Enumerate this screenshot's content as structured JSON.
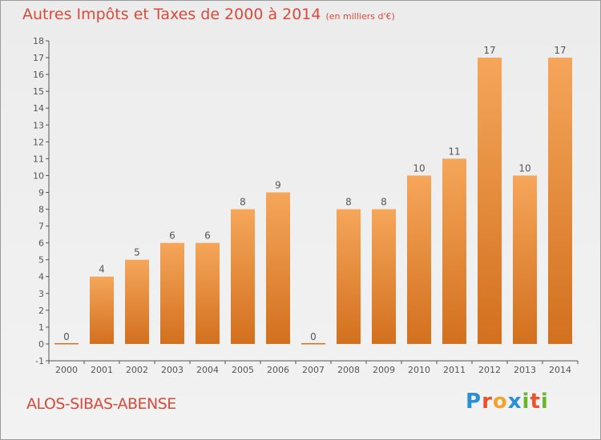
{
  "header": {
    "title": "Autres Impôts et Taxes de 2000 à 2014",
    "subtitle": "(en milliers d'€)"
  },
  "footer": {
    "location": "ALOS-SIBAS-ABENSE",
    "logo": {
      "text": "Proxiti",
      "letters": [
        "P",
        "r",
        "o",
        "x",
        "i",
        "t",
        "i"
      ],
      "colors": [
        "#2a8fd6",
        "#e8532a",
        "#f2a42a",
        "#2a8fd6",
        "#6ab530",
        "#e8532a",
        "#6ab530"
      ]
    }
  },
  "chart_data": {
    "type": "bar",
    "title": "Autres Impôts et Taxes de 2000 à 2014",
    "subtitle": "(en milliers d'€)",
    "categories": [
      "2000",
      "2001",
      "2002",
      "2003",
      "2004",
      "2005",
      "2006",
      "2007",
      "2008",
      "2009",
      "2010",
      "2011",
      "2012",
      "2013",
      "2014"
    ],
    "values": [
      0,
      4,
      5,
      6,
      6,
      8,
      9,
      0,
      8,
      8,
      10,
      11,
      17,
      10,
      17
    ],
    "data_labels": [
      "0",
      "4",
      "5",
      "6",
      "6",
      "8",
      "9",
      "0",
      "8",
      "8",
      "10",
      "11",
      "17",
      "10",
      "17"
    ],
    "yticks": [
      "-1",
      "0",
      "1",
      "2",
      "3",
      "4",
      "5",
      "6",
      "7",
      "8",
      "9",
      "10",
      "11",
      "12",
      "13",
      "14",
      "15",
      "16",
      "17",
      "18"
    ],
    "ylim": [
      -1,
      18
    ],
    "grid": false,
    "colors": {
      "bar_top": "#f5a65a",
      "bar_bottom": "#d2701e",
      "label": "#555555",
      "axis": "#555555"
    }
  }
}
